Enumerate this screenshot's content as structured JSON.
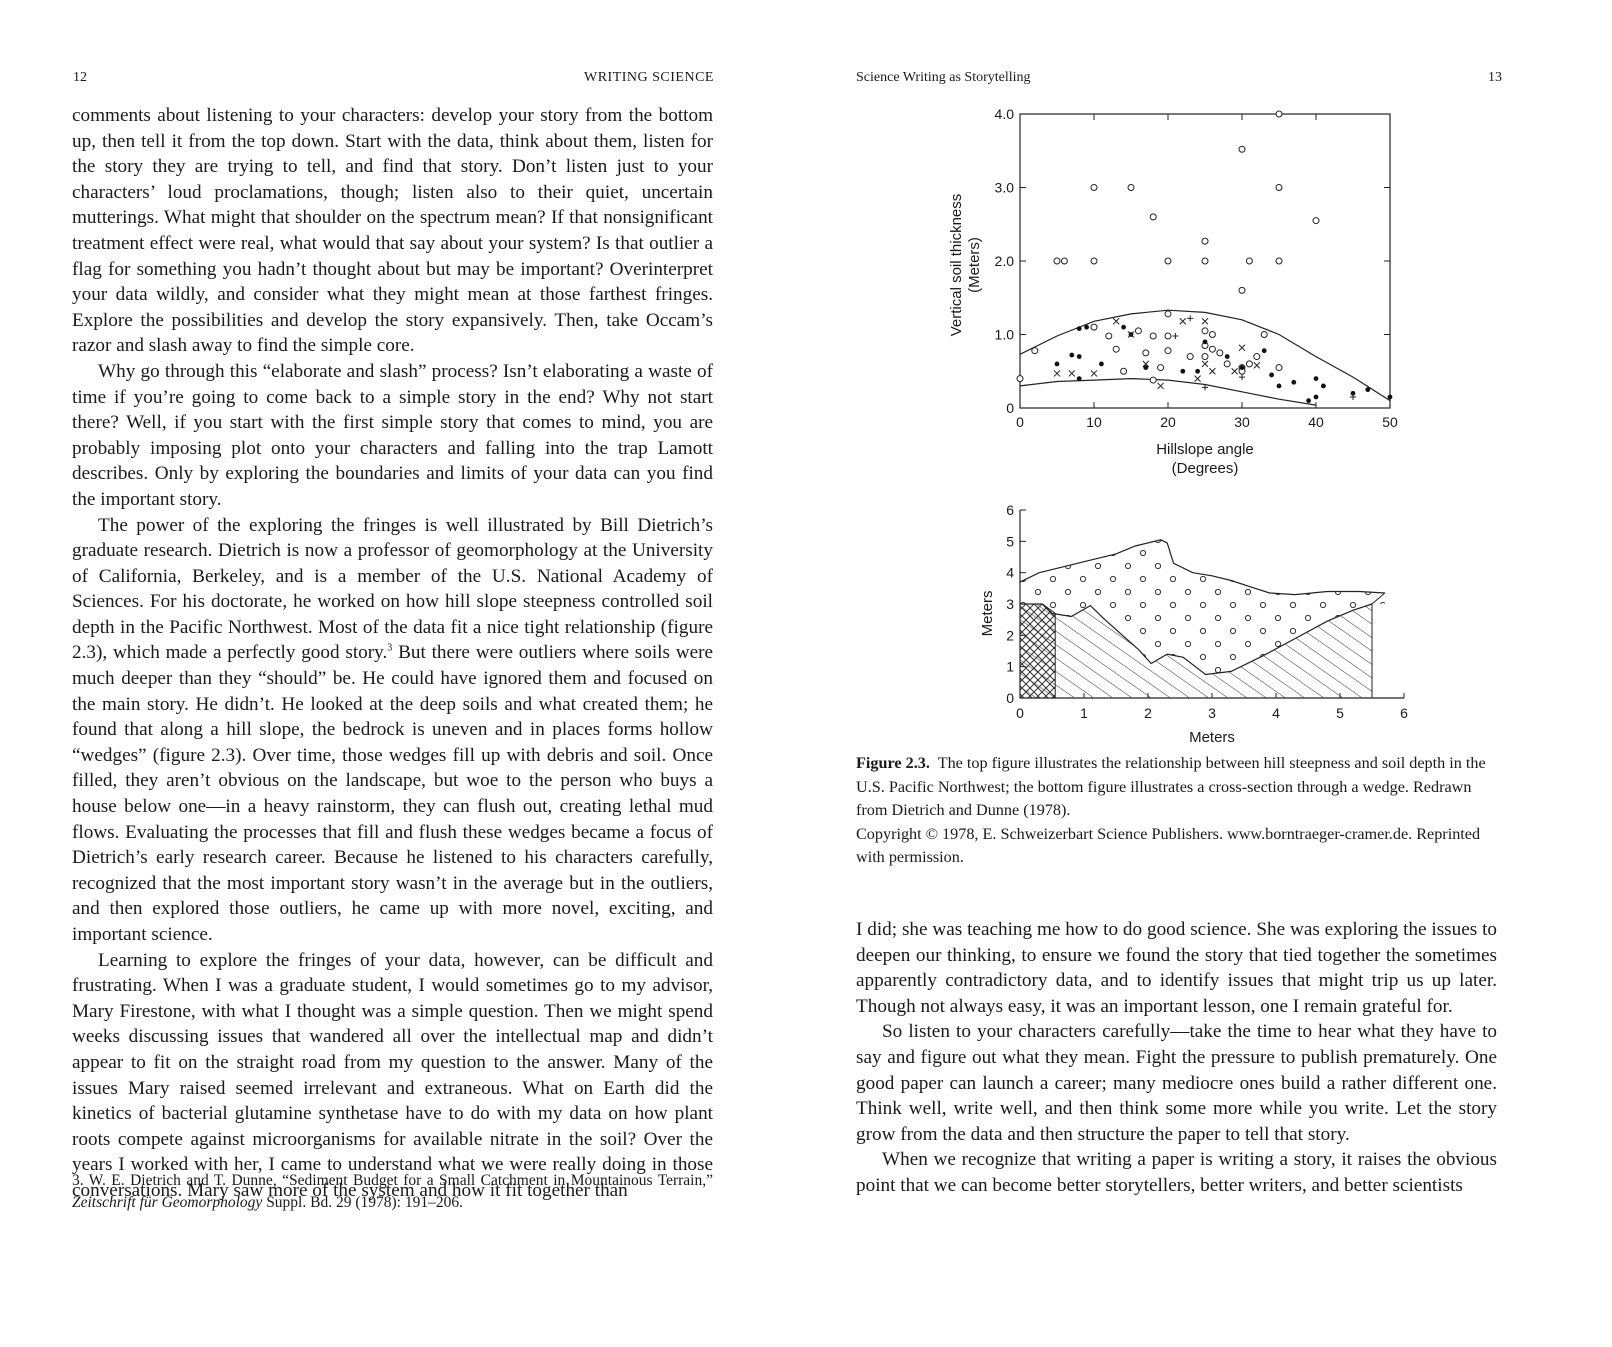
{
  "left_page": {
    "folio": "12",
    "running_head": "WRITING SCIENCE",
    "paragraphs": [
      "comments about listening to your characters: develop your story from the bottom up, then tell it from the top down. Start with the data, think about them, listen for the story they are trying to tell, and find that story. Don’t listen just to your characters’ loud proclamations, though; listen also to their quiet, uncertain mutterings. What might that shoulder on the spectrum mean? If that nonsignificant treatment effect were real, what would that say about your system? Is that outlier a flag for something you hadn’t thought about but may be important? Overinterpret your data wildly, and consider what they might mean at those farthest fringes. Explore the possibilities and develop the story expansively. Then, take Occam’s razor and slash away to find the simple core.",
      "Why go through this “elaborate and slash” process? Isn’t elaborating a waste of time if you’re going to come back to a simple story in the end? Why not start there? Well, if you start with the first simple story that comes to mind, you are probably imposing plot onto your characters and falling into the trap Lamott describes. Only by exploring the boundaries and limits of your data can you find the important story.",
      "The power of the exploring the fringes is well illustrated by Bill Dietrich’s graduate research. Dietrich is now a professor of geomorphology at the University of California, Berkeley, and is a member of the U.S. National Academy of Sciences. For his doctorate, he worked on how hill slope steepness controlled soil depth in the Pacific Northwest. Most of the data fit a nice tight relationship (figure 2.3), which made a perfectly good story.",
      "But there were outliers where soils were much deeper than they “should” be. He could have ignored them and focused on the main story. He didn’t. He looked at the deep soils and what created them; he found that along a hill slope, the bedrock is uneven and in places forms hollow “wedges” (figure 2.3). Over time, those wedges fill up with debris and soil. Once filled, they aren’t obvious on the landscape, but woe to the person who buys a house below one—in a heavy rainstorm, they can flush out, creating lethal mud flows. Evaluating the processes that fill and flush these wedges became a focus of Dietrich’s early research career. Because he listened to his characters carefully, recognized that the most important story wasn’t in the average but in the outliers, and then explored those outliers, he came up with more novel, exciting, and important science.",
      "Learning to explore the fringes of your data, however, can be difficult and frustrating. When I was a graduate student, I would sometimes go to my advisor, Mary Firestone, with what I thought was a simple question. Then we might spend weeks discussing issues that wandered all over the intellectual map and didn’t appear to fit on the straight road from my question to the answer. Many of the issues Mary raised seemed irrelevant and extraneous. What on Earth did the kinetics of bacterial glutamine synthetase have to do with my data on how plant roots compete against microorganisms for available nitrate in the soil? Over the years I worked with her, I came to understand what we were really doing in those conversations. Mary saw more of the system and how it fit together than"
    ],
    "footnote_ref": "3",
    "footnote": {
      "pre": "3. W. E. Dietrich and T. Dunne, “Sediment Budget for a Small Catchment in Mountainous Terrain,” ",
      "journal": "Zeitschrift für Geomorphology",
      "post": " Suppl. Bd. 29 (1978): 191–206."
    }
  },
  "right_page": {
    "folio": "13",
    "running_head": "Science Writing as Storytelling",
    "caption": {
      "label": "Figure 2.3.",
      "text": "The top figure illustrates the relationship between hill steepness and soil depth in the U.S. Pacific Northwest; the bottom figure illustrates a cross-section through a wedge. Redrawn from Dietrich and Dunne (1978).",
      "copyright": "Copyright © 1978, E. Schweizerbart Science Publishers. www.borntraeger-cramer.de. Reprinted with permission."
    },
    "paragraphs": [
      "I did; she was teaching me how to do good science. She was exploring the issues to deepen our thinking, to ensure we found the story that tied together the sometimes apparently contradictory data, and to identify issues that might trip us up later. Though not always easy, it was an important lesson, one I remain grateful for.",
      "So listen to your characters carefully—take the time to hear what they have to say and figure out what they mean. Fight the pressure to publish prematurely. One good paper can launch a career; many mediocre ones build a rather different one. Think well, write well, and then think some more while you write. Let the story grow from the data and then structure the paper to tell that story.",
      "When we recognize that writing a paper is writing a story, it raises the obvious point that we can become better storytellers, better writers, and better scientists"
    ]
  },
  "chart_data": [
    {
      "type": "scatter",
      "title": "",
      "xlabel": "Hillslope angle\n(Degrees)",
      "ylabel": "Vertical soil thickness\n(Meters)",
      "xlim": [
        0,
        50
      ],
      "ylim": [
        0,
        4.0
      ],
      "xticks": [
        "0",
        "10",
        "20",
        "30",
        "40",
        "50"
      ],
      "yticks": [
        "0",
        "1.0",
        "2.0",
        "3.0",
        "4.0"
      ],
      "series": [
        {
          "marker": "open-circle",
          "points": [
            [
              0,
              0.4
            ],
            [
              2,
              0.78
            ],
            [
              5,
              2.0
            ],
            [
              6,
              2.0
            ],
            [
              10,
              3.0
            ],
            [
              10,
              2.0
            ],
            [
              15,
              3.0
            ],
            [
              18,
              2.6
            ],
            [
              20,
              2.0
            ],
            [
              25,
              2.27
            ],
            [
              25,
              2.0
            ],
            [
              30,
              3.52
            ],
            [
              30,
              1.6
            ],
            [
              31,
              2.0
            ],
            [
              35,
              4.0
            ],
            [
              35,
              3.0
            ],
            [
              35,
              2.0
            ],
            [
              40,
              2.55
            ],
            [
              10,
              1.1
            ],
            [
              12,
              0.98
            ],
            [
              13,
              0.8
            ],
            [
              16,
              1.05
            ],
            [
              17,
              0.75
            ],
            [
              18,
              0.98
            ],
            [
              20,
              0.98
            ],
            [
              20,
              0.78
            ],
            [
              20,
              1.28
            ],
            [
              19,
              0.55
            ],
            [
              23,
              0.7
            ],
            [
              25,
              1.05
            ],
            [
              26,
              1.0
            ],
            [
              25,
              0.85
            ],
            [
              26,
              0.8
            ],
            [
              27,
              0.75
            ],
            [
              25,
              0.7
            ],
            [
              28,
              0.6
            ],
            [
              30,
              0.55
            ],
            [
              31,
              0.6
            ],
            [
              32,
              0.7
            ],
            [
              33,
              1.0
            ],
            [
              35,
              0.55
            ],
            [
              30,
              0.5
            ],
            [
              18,
              0.38
            ],
            [
              14,
              0.5
            ]
          ]
        },
        {
          "marker": "filled-dot",
          "points": [
            [
              5,
              0.6
            ],
            [
              7,
              0.72
            ],
            [
              8,
              0.7
            ],
            [
              8,
              0.4
            ],
            [
              8,
              1.08
            ],
            [
              9,
              1.1
            ],
            [
              11,
              0.6
            ],
            [
              14,
              1.1
            ],
            [
              15,
              1.0
            ],
            [
              17,
              0.55
            ],
            [
              22,
              0.5
            ],
            [
              24,
              0.5
            ],
            [
              25,
              0.9
            ],
            [
              28,
              0.7
            ],
            [
              30,
              0.55
            ],
            [
              33,
              0.78
            ],
            [
              34,
              0.45
            ],
            [
              35,
              0.3
            ],
            [
              37,
              0.35
            ],
            [
              39,
              0.1
            ],
            [
              40,
              0.15
            ],
            [
              40,
              0.4
            ],
            [
              41,
              0.3
            ],
            [
              45,
              0.2
            ],
            [
              47,
              0.25
            ],
            [
              50,
              0.15
            ]
          ]
        },
        {
          "marker": "x",
          "points": [
            [
              5,
              0.47
            ],
            [
              7,
              0.47
            ],
            [
              10,
              0.47
            ],
            [
              13,
              1.18
            ],
            [
              15,
              1.0
            ],
            [
              17,
              0.6
            ],
            [
              19,
              0.3
            ],
            [
              22,
              1.18
            ],
            [
              25,
              1.18
            ],
            [
              25,
              0.6
            ],
            [
              26,
              0.5
            ],
            [
              29,
              0.5
            ],
            [
              30,
              0.82
            ],
            [
              32,
              0.58
            ],
            [
              24,
              0.4
            ]
          ]
        },
        {
          "marker": "plus",
          "points": [
            [
              23,
              1.22
            ],
            [
              21,
              0.98
            ],
            [
              25,
              0.28
            ],
            [
              30,
              0.42
            ],
            [
              45,
              0.15
            ]
          ]
        }
      ],
      "curves": [
        {
          "name": "upper envelope",
          "points": [
            [
              0,
              0.73
            ],
            [
              5,
              0.98
            ],
            [
              10,
              1.18
            ],
            [
              15,
              1.28
            ],
            [
              20,
              1.33
            ],
            [
              25,
              1.3
            ],
            [
              30,
              1.2
            ],
            [
              35,
              1.0
            ],
            [
              40,
              0.7
            ],
            [
              45,
              0.42
            ],
            [
              50,
              0.1
            ]
          ]
        },
        {
          "name": "lower envelope",
          "points": [
            [
              0,
              0.3
            ],
            [
              5,
              0.36
            ],
            [
              10,
              0.38
            ],
            [
              15,
              0.4
            ],
            [
              20,
              0.38
            ],
            [
              25,
              0.32
            ],
            [
              30,
              0.22
            ],
            [
              35,
              0.12
            ],
            [
              40,
              0.04
            ]
          ]
        }
      ]
    },
    {
      "type": "area",
      "title": "",
      "xlabel": "Meters",
      "ylabel": "Meters",
      "xlim": [
        0,
        6
      ],
      "ylim": [
        0,
        6
      ],
      "xticks": [
        "0",
        "1",
        "2",
        "3",
        "4",
        "5",
        "6"
      ],
      "yticks": [
        "0",
        "1",
        "2",
        "3",
        "4",
        "5",
        "6"
      ],
      "ground_surface": [
        [
          0,
          3.7
        ],
        [
          0.3,
          4.0
        ],
        [
          0.7,
          4.2
        ],
        [
          1.0,
          4.35
        ],
        [
          1.5,
          4.6
        ],
        [
          1.8,
          4.85
        ],
        [
          2.2,
          5.05
        ],
        [
          2.3,
          4.95
        ],
        [
          2.4,
          4.3
        ],
        [
          2.7,
          4.0
        ],
        [
          3.0,
          3.9
        ],
        [
          3.3,
          3.75
        ],
        [
          3.6,
          3.55
        ],
        [
          3.9,
          3.35
        ],
        [
          4.3,
          3.3
        ],
        [
          4.8,
          3.4
        ],
        [
          5.3,
          3.4
        ],
        [
          5.7,
          3.35
        ]
      ],
      "bedrock_surface": [
        [
          0,
          3.0
        ],
        [
          0.35,
          3.0
        ],
        [
          0.5,
          2.7
        ],
        [
          0.8,
          2.6
        ],
        [
          1.1,
          2.95
        ],
        [
          1.3,
          2.55
        ],
        [
          1.6,
          2.0
        ],
        [
          1.85,
          1.55
        ],
        [
          2.05,
          1.1
        ],
        [
          2.3,
          1.4
        ],
        [
          2.55,
          1.3
        ],
        [
          2.9,
          0.75
        ],
        [
          3.3,
          0.85
        ],
        [
          3.8,
          1.35
        ],
        [
          4.3,
          1.9
        ],
        [
          4.8,
          2.45
        ],
        [
          5.2,
          2.8
        ],
        [
          5.5,
          3.0
        ]
      ],
      "crosshatch_wedge": [
        [
          0,
          0
        ],
        [
          0.55,
          0
        ],
        [
          0.55,
          2.7
        ],
        [
          0.35,
          3.0
        ],
        [
          0,
          3.0
        ]
      ]
    }
  ]
}
